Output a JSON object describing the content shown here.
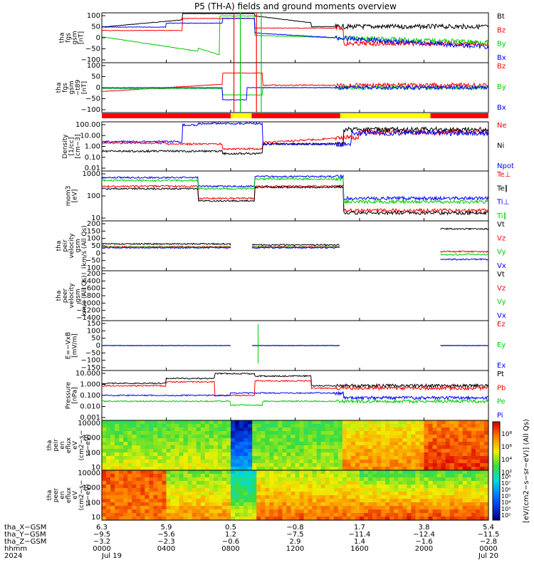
{
  "title": "P5 (TH-A) fields and ground moments overview",
  "colors": {
    "black": "#000000",
    "red": "#ff0000",
    "green": "#00cc00",
    "blue": "#0000ff",
    "yellow": "#ffff00"
  },
  "chart_data": [
    {
      "type": "line",
      "id": "fgs",
      "ylabel": [
        "tha",
        "fgs",
        "gsm",
        "[nT]"
      ],
      "ylim": [
        -100,
        100
      ],
      "yticks": [
        "100",
        "50",
        "0",
        "−50",
        "−100"
      ],
      "series": [
        {
          "name": "Bt",
          "color": "black"
        },
        {
          "name": "Bz",
          "color": "red"
        },
        {
          "name": "By",
          "color": "green"
        },
        {
          "name": "Bx",
          "color": "blue"
        }
      ]
    },
    {
      "type": "line",
      "id": "fgs_dip",
      "ylabel": [
        "tha",
        "fgs",
        "gsm",
        "−t89",
        "[nT]"
      ],
      "ylim": [
        -120,
        120
      ],
      "yticks": [
        "100",
        "50",
        "0",
        "−50",
        "−100"
      ],
      "series": [
        {
          "name": "Bz",
          "color": "red"
        },
        {
          "name": "By",
          "color": "green"
        },
        {
          "name": "Bx",
          "color": "blue"
        }
      ]
    },
    {
      "type": "line",
      "id": "density",
      "ylabel": [
        "Density",
        "[1/cc]",
        "[cm−3]"
      ],
      "scale": "log",
      "ylim": [
        0.003,
        200
      ],
      "yticks": [
        "100.00",
        "10.00",
        "1.00",
        "0.10",
        "0.01"
      ],
      "series": [
        {
          "name": "Ne",
          "color": "red"
        },
        {
          "name": "Ni",
          "color": "black"
        },
        {
          "name": "Npot",
          "color": "blue"
        }
      ]
    },
    {
      "type": "line",
      "id": "temp",
      "ylabel": [
        "mom3",
        "[eV]"
      ],
      "scale": "log",
      "ylim": [
        10,
        3000
      ],
      "yticks": [
        "1000",
        "100",
        "10"
      ],
      "series": [
        {
          "name": "Te⊥",
          "color": "red"
        },
        {
          "name": "Te∥",
          "color": "black"
        },
        {
          "name": "Ti⊥",
          "color": "blue"
        },
        {
          "name": "Ti∥",
          "color": "green"
        }
      ]
    },
    {
      "type": "line",
      "id": "peir_vel",
      "ylabel": [
        "tha",
        "peir",
        "velocity",
        "gsm",
        "km/s (All Qs)"
      ],
      "ylim": [
        -150,
        250
      ],
      "yticks": [
        "200",
        "150",
        "100",
        "50",
        "0",
        "−50",
        "−100"
      ],
      "series": [
        {
          "name": "Vt",
          "color": "black"
        },
        {
          "name": "Vz",
          "color": "red"
        },
        {
          "name": "Vy",
          "color": "green"
        },
        {
          "name": "Vx",
          "color": "blue"
        }
      ]
    },
    {
      "type": "line",
      "id": "peer_vel",
      "ylabel": [
        "tha",
        "peer",
        "velocity",
        "gsm",
        "km/s (All Qs)"
      ],
      "ylim": [
        -1450,
        -150
      ],
      "yticks": [
        "−200",
        "−400",
        "−600",
        "−800",
        "−1000",
        "−1200",
        "−1400"
      ],
      "series": [
        {
          "name": "Vt",
          "color": "black"
        },
        {
          "name": "Vz",
          "color": "red"
        },
        {
          "name": "Vy",
          "color": "green"
        },
        {
          "name": "Vx",
          "color": "blue"
        }
      ]
    },
    {
      "type": "line",
      "id": "efield",
      "ylabel": [
        "E=−VxB",
        "[mV/m]"
      ],
      "ylim": [
        -160,
        160
      ],
      "yticks": [
        "150",
        "100",
        "50",
        "0",
        "−50",
        "−100",
        "−150"
      ],
      "series": [
        {
          "name": "Ez",
          "color": "red"
        },
        {
          "name": "Ey",
          "color": "green"
        },
        {
          "name": "Ex",
          "color": "blue"
        }
      ]
    },
    {
      "type": "line",
      "id": "pressure",
      "ylabel": [
        "Pressure",
        "[nPa]"
      ],
      "scale": "log",
      "ylim": [
        0.0003,
        20
      ],
      "yticks": [
        "10.000",
        "1.000",
        "0.100",
        "0.010",
        "0.001"
      ],
      "series": [
        {
          "name": "Pt",
          "color": "black"
        },
        {
          "name": "Pb",
          "color": "red"
        },
        {
          "name": "Pe",
          "color": "green"
        },
        {
          "name": "Pi",
          "color": "blue"
        }
      ]
    },
    {
      "type": "heatmap",
      "id": "peir_en",
      "ylabel": [
        "tha",
        "peir",
        "en",
        "eflux",
        "eV",
        "(cm2−s−",
        "sr−eV)"
      ],
      "yticks": [
        "10000",
        "1000",
        "100",
        "10"
      ]
    },
    {
      "type": "heatmap",
      "id": "peer_en",
      "ylabel": [
        "tha",
        "peer",
        "en",
        "eflux",
        "eV",
        "(cm2−s−",
        "sr−eV)"
      ],
      "yticks": [
        "10000",
        "1000",
        "100",
        "10"
      ]
    }
  ],
  "colorbar": {
    "label": "[eV/(cm2−s−sr−eV)] (All Qs)",
    "ticks_top": [
      "10⁸",
      "10⁶",
      "10⁴",
      "10²"
    ],
    "ticks_bottom": [
      "10⁸",
      "10⁷",
      "10⁶",
      "10⁵",
      "10⁴",
      "10³",
      "10²"
    ]
  },
  "xaxis": {
    "rows": [
      {
        "label": "tha_X−GSM",
        "values": [
          "6.3",
          "5.9",
          "0.5",
          "−0.8",
          "1.7",
          "3.8",
          "5.4"
        ]
      },
      {
        "label": "tha_Y−GSM",
        "values": [
          "−9.5",
          "−5.6",
          "1.2",
          "−7.5",
          "−11.4",
          "−12.4",
          "−11.5"
        ]
      },
      {
        "label": "tha_Z−GSM",
        "values": [
          "−3.2",
          "−2.3",
          "−0.6",
          "2.9",
          "1.4",
          "−1.6",
          "−2.8"
        ]
      },
      {
        "label": "hhmm",
        "values": [
          "0000",
          "0400",
          "0800",
          "1200",
          "1600",
          "2000",
          "0000"
        ]
      },
      {
        "label": "2024",
        "values": [
          "Jul 19",
          "",
          "",
          "",
          "",
          "",
          "Jul 20"
        ]
      }
    ],
    "tick_hours": [
      0,
      4,
      8,
      12,
      16,
      20,
      24
    ]
  },
  "mode_bar": [
    {
      "from": 0,
      "to": 8.0,
      "color": "red"
    },
    {
      "from": 8.0,
      "to": 9.3,
      "color": "yellow"
    },
    {
      "from": 9.3,
      "to": 14.8,
      "color": "red"
    },
    {
      "from": 14.8,
      "to": 20.4,
      "color": "yellow"
    },
    {
      "from": 20.4,
      "to": 24,
      "color": "red"
    }
  ]
}
